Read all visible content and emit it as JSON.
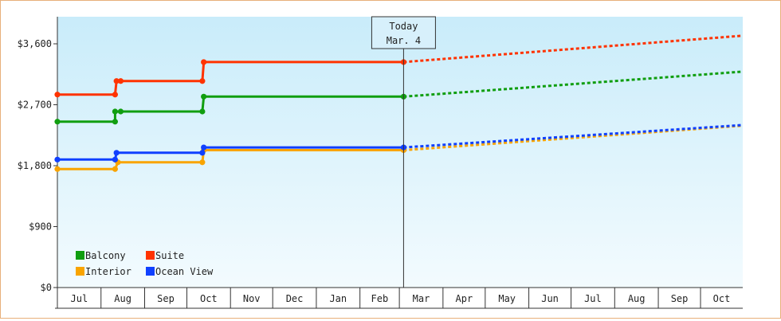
{
  "chart_data": {
    "type": "line",
    "title": "",
    "xlabel": "",
    "ylabel": "",
    "ylim": [
      0,
      4000
    ],
    "y_ticks": [
      0,
      900,
      1800,
      2700,
      3600
    ],
    "y_tick_labels": [
      "$0",
      "$900",
      "$1,800",
      "$2,700",
      "$3,600"
    ],
    "x_range": [
      "2024-07-01",
      "2025-10-31"
    ],
    "x_months": [
      {
        "label": "Jul",
        "start": "2024-07-01",
        "end": "2024-08-01"
      },
      {
        "label": "Aug",
        "start": "2024-08-01",
        "end": "2024-09-01"
      },
      {
        "label": "Sep",
        "start": "2024-09-01",
        "end": "2024-10-01"
      },
      {
        "label": "Oct",
        "start": "2024-10-01",
        "end": "2024-11-01"
      },
      {
        "label": "Nov",
        "start": "2024-11-01",
        "end": "2024-12-01"
      },
      {
        "label": "Dec",
        "start": "2024-12-01",
        "end": "2025-01-01"
      },
      {
        "label": "Jan",
        "start": "2025-01-01",
        "end": "2025-02-01"
      },
      {
        "label": "Feb",
        "start": "2025-02-01",
        "end": "2025-03-01"
      },
      {
        "label": "Mar",
        "start": "2025-03-01",
        "end": "2025-04-01"
      },
      {
        "label": "Apr",
        "start": "2025-04-01",
        "end": "2025-05-01"
      },
      {
        "label": "May",
        "start": "2025-05-01",
        "end": "2025-06-01"
      },
      {
        "label": "Jun",
        "start": "2025-06-01",
        "end": "2025-07-01"
      },
      {
        "label": "Jul",
        "start": "2025-07-01",
        "end": "2025-08-01"
      },
      {
        "label": "Aug",
        "start": "2025-08-01",
        "end": "2025-09-01"
      },
      {
        "label": "Sep",
        "start": "2025-09-01",
        "end": "2025-10-01"
      },
      {
        "label": "Oct",
        "start": "2025-10-01",
        "end": "2025-10-31"
      }
    ],
    "today": {
      "date": "2025-03-04",
      "label_line1": "Today",
      "label_line2": "Mar. 4"
    },
    "grid": false,
    "legend_position": "bottom-left",
    "series": [
      {
        "name": "Balcony",
        "color": "#109e10",
        "points": [
          {
            "x": "2024-07-01",
            "y": 2450
          },
          {
            "x": "2024-08-11",
            "y": 2450
          },
          {
            "x": "2024-08-11",
            "y": 2600
          },
          {
            "x": "2024-08-15",
            "y": 2600
          },
          {
            "x": "2024-10-12",
            "y": 2600
          },
          {
            "x": "2024-10-13",
            "y": 2820
          },
          {
            "x": "2025-03-04",
            "y": 2820
          }
        ],
        "forecast": [
          {
            "x": "2025-03-04",
            "y": 2820
          },
          {
            "x": "2025-10-31",
            "y": 3190
          }
        ]
      },
      {
        "name": "Suite",
        "color": "#ff3300",
        "points": [
          {
            "x": "2024-07-01",
            "y": 2850
          },
          {
            "x": "2024-08-11",
            "y": 2850
          },
          {
            "x": "2024-08-12",
            "y": 3050
          },
          {
            "x": "2024-08-15",
            "y": 3050
          },
          {
            "x": "2024-10-12",
            "y": 3050
          },
          {
            "x": "2024-10-13",
            "y": 3330
          },
          {
            "x": "2025-03-04",
            "y": 3330
          }
        ],
        "forecast": [
          {
            "x": "2025-03-04",
            "y": 3330
          },
          {
            "x": "2025-10-31",
            "y": 3720
          }
        ]
      },
      {
        "name": "Interior",
        "color": "#f9a400",
        "points": [
          {
            "x": "2024-07-01",
            "y": 1750
          },
          {
            "x": "2024-08-11",
            "y": 1750
          },
          {
            "x": "2024-08-13",
            "y": 1850
          },
          {
            "x": "2024-10-12",
            "y": 1850
          },
          {
            "x": "2024-10-13",
            "y": 2030
          },
          {
            "x": "2025-03-04",
            "y": 2030
          }
        ],
        "forecast": [
          {
            "x": "2025-03-04",
            "y": 2030
          },
          {
            "x": "2025-10-31",
            "y": 2390
          }
        ]
      },
      {
        "name": "Ocean View",
        "color": "#1040ff",
        "points": [
          {
            "x": "2024-07-01",
            "y": 1890
          },
          {
            "x": "2024-08-11",
            "y": 1890
          },
          {
            "x": "2024-08-12",
            "y": 1990
          },
          {
            "x": "2024-10-12",
            "y": 1990
          },
          {
            "x": "2024-10-13",
            "y": 2070
          },
          {
            "x": "2025-03-04",
            "y": 2070
          }
        ],
        "forecast": [
          {
            "x": "2025-03-04",
            "y": 2070
          },
          {
            "x": "2025-10-31",
            "y": 2400
          }
        ]
      }
    ],
    "legend_layout": [
      [
        "Balcony",
        "Suite"
      ],
      [
        "Interior",
        "Ocean View"
      ]
    ]
  }
}
